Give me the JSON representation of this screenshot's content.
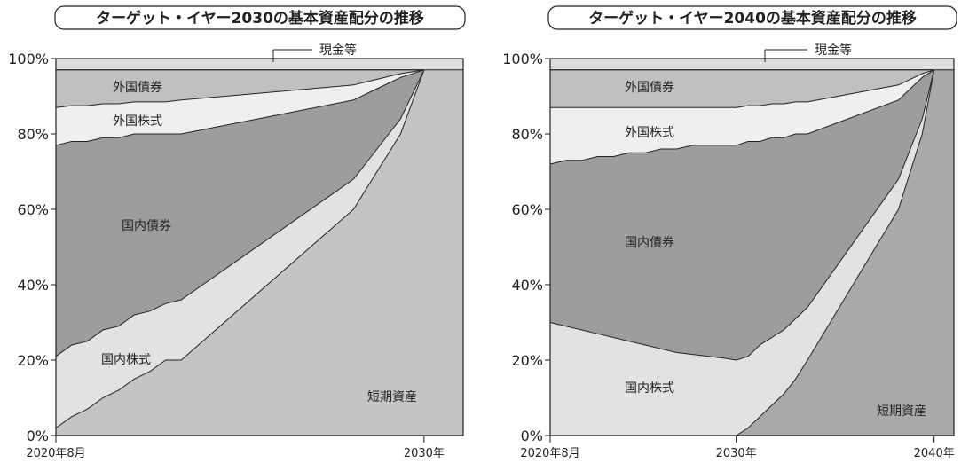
{
  "chart_data": [
    {
      "type": "area",
      "title": "ターゲット・イヤー2030の基本資産配分の推移",
      "xlabel": "",
      "ylabel": "",
      "ylim": [
        0,
        100
      ],
      "yticks": [
        "0%",
        "20%",
        "40%",
        "60%",
        "80%",
        "100%"
      ],
      "xticks": [
        {
          "t": 0,
          "label": "2020年8月"
        },
        {
          "t": 9.4,
          "label": "2030年"
        }
      ],
      "xlim": [
        0,
        10.4
      ],
      "stacking": "cumulative boundaries (%)",
      "x": [
        0,
        0.4,
        0.8,
        1.2,
        1.6,
        2.0,
        2.4,
        2.8,
        3.2,
        7.6,
        8.2,
        8.8,
        9.4
      ],
      "series": [
        {
          "name": "短期資産",
          "boundary_top": [
            2,
            5,
            7,
            10,
            12,
            15,
            17,
            20,
            20,
            60,
            70,
            80,
            97
          ]
        },
        {
          "name": "国内株式",
          "boundary_top": [
            21,
            24,
            25,
            28,
            29,
            32,
            33,
            35,
            36,
            68,
            76,
            84,
            97
          ]
        },
        {
          "name": "国内債券",
          "boundary_top": [
            77,
            78,
            78,
            79,
            79,
            80,
            80,
            80,
            80,
            89,
            92,
            95,
            97
          ]
        },
        {
          "name": "外国株式",
          "boundary_top": [
            87,
            87.5,
            87.5,
            88,
            88,
            88.5,
            88.5,
            88.5,
            89,
            93,
            94.5,
            96,
            97
          ]
        },
        {
          "name": "外国債券",
          "boundary_top": [
            97,
            97,
            97,
            97,
            97,
            97,
            97,
            97,
            97,
            97,
            97,
            97,
            97
          ]
        },
        {
          "name": "現金等",
          "boundary_top": [
            100,
            100,
            100,
            100,
            100,
            100,
            100,
            100,
            100,
            100,
            100,
            100,
            100
          ]
        }
      ],
      "colors": [
        "#c4c4c4",
        "#e2e2e2",
        "#9d9d9d",
        "#efefef",
        "#c0c0c0",
        "#dddddd"
      ]
    },
    {
      "type": "area",
      "title": "ターゲット・イヤー2040の基本資産配分の推移",
      "xlabel": "",
      "ylabel": "",
      "ylim": [
        0,
        100
      ],
      "yticks": [
        "0%",
        "20%",
        "40%",
        "60%",
        "80%",
        "100%"
      ],
      "xticks": [
        {
          "t": 0,
          "label": "2020年8月"
        },
        {
          "t": 9.4,
          "label": "2030年"
        },
        {
          "t": 19.4,
          "label": "2040年"
        }
      ],
      "xlim": [
        0,
        20.4
      ],
      "stacking": "cumulative boundaries (%)",
      "x": [
        0,
        0.8,
        1.6,
        2.4,
        3.2,
        4.0,
        4.8,
        5.6,
        6.4,
        7.2,
        8.0,
        8.8,
        9.4,
        10.0,
        10.6,
        11.2,
        11.8,
        12.4,
        13.0,
        17.6,
        18.2,
        18.8,
        19.4
      ],
      "series": [
        {
          "name": "短期資産",
          "boundary_top": [
            0,
            0,
            0,
            0,
            0,
            0,
            0,
            0,
            0,
            0,
            0,
            0,
            0,
            2,
            5,
            8,
            11,
            15,
            20,
            60,
            70,
            80,
            97
          ]
        },
        {
          "name": "国内株式",
          "boundary_top": [
            30,
            29,
            28,
            27,
            26,
            25,
            24,
            23,
            22,
            21.5,
            21,
            20.5,
            20,
            21,
            24,
            26,
            28,
            31,
            34,
            68,
            76,
            84,
            97
          ]
        },
        {
          "name": "国内債券",
          "boundary_top": [
            72,
            73,
            73,
            74,
            74,
            75,
            75,
            76,
            76,
            77,
            77,
            77,
            77,
            78,
            78,
            79,
            79,
            80,
            80,
            89,
            92,
            95,
            97
          ]
        },
        {
          "name": "外国株式",
          "boundary_top": [
            87,
            87,
            87,
            87,
            87,
            87,
            87,
            87,
            87,
            87,
            87,
            87,
            87,
            87.5,
            87.5,
            88,
            88,
            88.5,
            88.5,
            93,
            94.5,
            96,
            97
          ]
        },
        {
          "name": "外国債券",
          "boundary_top": [
            97,
            97,
            97,
            97,
            97,
            97,
            97,
            97,
            97,
            97,
            97,
            97,
            97,
            97,
            97,
            97,
            97,
            97,
            97,
            97,
            97,
            97,
            97
          ]
        },
        {
          "name": "現金等",
          "boundary_top": [
            100,
            100,
            100,
            100,
            100,
            100,
            100,
            100,
            100,
            100,
            100,
            100,
            100,
            100,
            100,
            100,
            100,
            100,
            100,
            100,
            100,
            100,
            100
          ]
        }
      ],
      "colors": [
        "#a9a9a9",
        "#e2e2e2",
        "#9d9d9d",
        "#efefef",
        "#c0c0c0",
        "#dddddd"
      ]
    }
  ]
}
